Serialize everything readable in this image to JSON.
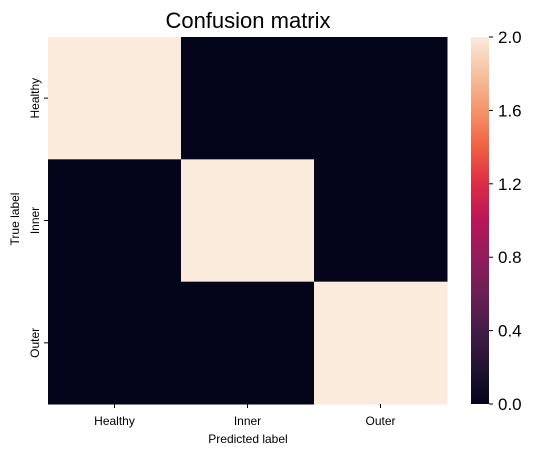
{
  "chart_data": {
    "type": "heatmap",
    "title": "Confusion matrix",
    "xlabel": "Predicted label",
    "ylabel": "True label",
    "x_categories": [
      "Healthy",
      "Inner",
      "Outer"
    ],
    "y_categories": [
      "Healthy",
      "Inner",
      "Outer"
    ],
    "values": [
      [
        2,
        0,
        0
      ],
      [
        0,
        2,
        0
      ],
      [
        0,
        0,
        2
      ]
    ],
    "colorbar": {
      "range": [
        0.0,
        2.0
      ],
      "ticks": [
        "0.0",
        "0.4",
        "0.8",
        "1.2",
        "1.6",
        "2.0"
      ],
      "colormap": "rocket",
      "low_color": "#03051a",
      "high_color": "#faebdd"
    },
    "grid": false
  }
}
